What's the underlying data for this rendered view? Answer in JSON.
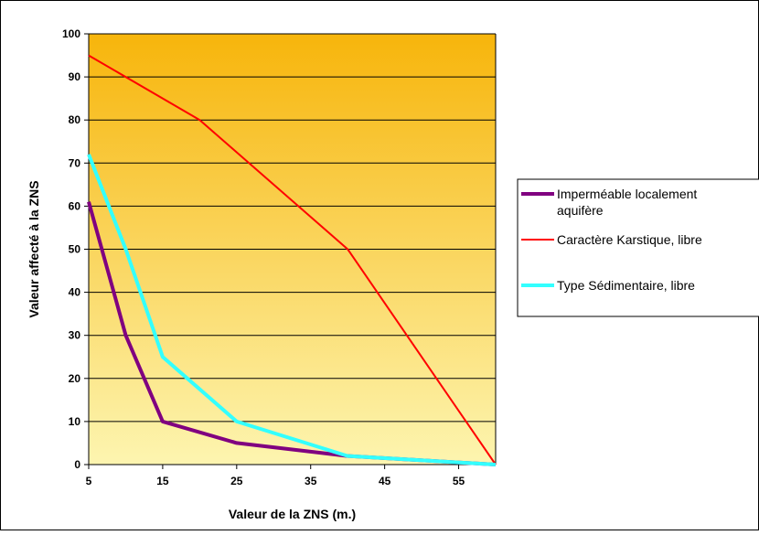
{
  "chart_data": {
    "type": "line",
    "title": "",
    "xlabel": "Valeur de la ZNS (m.)",
    "ylabel": "Valeur affecté à la ZNS",
    "xlim": [
      5,
      60
    ],
    "ylim": [
      0,
      100
    ],
    "x_ticks": [
      5,
      15,
      25,
      35,
      45,
      55
    ],
    "y_ticks": [
      0,
      10,
      20,
      30,
      40,
      50,
      60,
      70,
      80,
      90,
      100
    ],
    "grid": "horizontal",
    "legend_position": "right",
    "series": [
      {
        "name": "Imperméable localement aquifère",
        "name_lines": [
          "Imperméable localement",
          "aquifère"
        ],
        "color": "#800080",
        "points": [
          [
            5,
            61
          ],
          [
            10,
            30
          ],
          [
            15,
            10
          ],
          [
            25,
            5
          ],
          [
            40,
            2
          ],
          [
            60,
            0
          ]
        ]
      },
      {
        "name": "Caractère Karstique, libre",
        "name_lines": [
          "Caractère Karstique, libre"
        ],
        "color": "#ff0000",
        "points": [
          [
            5,
            95
          ],
          [
            20,
            80
          ],
          [
            40,
            50
          ],
          [
            60,
            0
          ]
        ]
      },
      {
        "name": "Type Sédimentaire, libre",
        "name_lines": [
          "Type Sédimentaire, libre"
        ],
        "color": "#33ffff",
        "points": [
          [
            5,
            72
          ],
          [
            10,
            50
          ],
          [
            15,
            25
          ],
          [
            25,
            10
          ],
          [
            40,
            2
          ],
          [
            60,
            0
          ]
        ]
      }
    ]
  }
}
